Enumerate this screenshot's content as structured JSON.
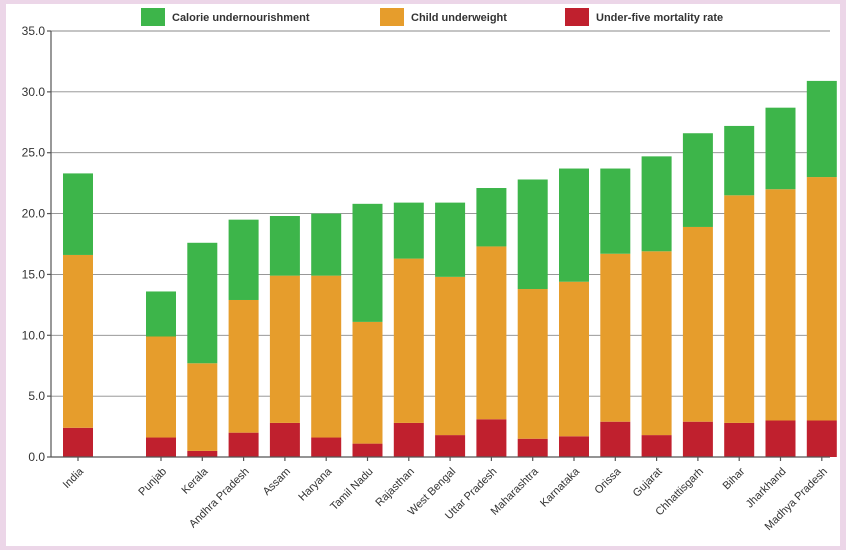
{
  "chart_data": {
    "type": "bar",
    "stacked": true,
    "title": "",
    "xlabel": "",
    "ylabel": "",
    "ylim": [
      0,
      35
    ],
    "yticks": [
      "0.0",
      "5.0",
      "10.0",
      "15.0",
      "20.0",
      "25.0",
      "30.0",
      "35.0"
    ],
    "grid": "horizontal",
    "legend_position": "top",
    "categories": [
      "India",
      "Punjab",
      "Kerala",
      "Andhra Pradesh",
      "Assam",
      "Haryana",
      "Tamil Nadu",
      "Rajasthan",
      "West Bengal",
      "Uttar Pradesh",
      "Maharashtra",
      "Karnataka",
      "Orissa",
      "Gujarat",
      "Chhattisgarh",
      "Bihar",
      "Jharkhand",
      "Madhya Pradesh"
    ],
    "series": [
      {
        "name": "Under-five mortality rate",
        "color": "#c0202e",
        "values": [
          2.4,
          1.6,
          0.5,
          2.0,
          2.8,
          1.6,
          1.1,
          2.8,
          1.8,
          3.1,
          1.5,
          1.7,
          2.9,
          1.8,
          2.9,
          2.8,
          3.0,
          3.0
        ]
      },
      {
        "name": "Child underweight",
        "color": "#e69d2c",
        "values": [
          14.2,
          8.3,
          7.2,
          10.9,
          12.1,
          13.3,
          10.0,
          13.5,
          13.0,
          14.2,
          12.3,
          12.7,
          13.8,
          15.1,
          16.0,
          18.7,
          19.0,
          20.0
        ]
      },
      {
        "name": "Calorie undernourishment",
        "color": "#3db54a",
        "values": [
          6.7,
          3.7,
          9.9,
          6.6,
          4.9,
          5.1,
          9.7,
          4.6,
          6.1,
          4.8,
          9.0,
          9.3,
          7.0,
          7.8,
          7.7,
          5.7,
          6.7,
          7.9
        ]
      }
    ],
    "legend": [
      {
        "name": "Calorie undernourishment",
        "color": "#3db54a"
      },
      {
        "name": "Child underweight",
        "color": "#e69d2c"
      },
      {
        "name": "Under-five mortality rate",
        "color": "#c0202e"
      }
    ]
  }
}
